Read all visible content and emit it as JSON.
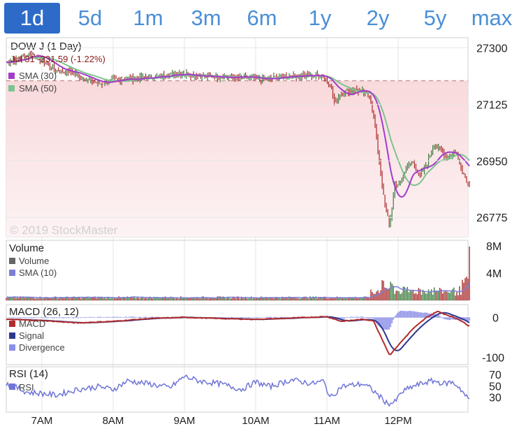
{
  "ranges": [
    {
      "label": "1d",
      "active": true
    },
    {
      "label": "5d",
      "active": false
    },
    {
      "label": "1m",
      "active": false
    },
    {
      "label": "3m",
      "active": false
    },
    {
      "label": "6m",
      "active": false
    },
    {
      "label": "1y",
      "active": false
    },
    {
      "label": "2y",
      "active": false
    },
    {
      "label": "5y",
      "active": false
    },
    {
      "label": "max",
      "active": false
    }
  ],
  "watermark": "© 2019 StockMaster",
  "chart_data": [
    {
      "type": "line",
      "title": "DOW J (1 Day)",
      "subtitle": "Jul 31 -331.59 (-1.22%)",
      "x_ticks": [
        "7AM",
        "8AM",
        "9AM",
        "10AM",
        "11AM",
        "12PM"
      ],
      "y_ticks": [
        27300,
        27125,
        26950,
        26775
      ],
      "ylim": [
        26715,
        27305
      ],
      "prev_close": 27198,
      "series": [
        {
          "name": "SMA (30)",
          "color": "#a23bc9"
        },
        {
          "name": "SMA (50)",
          "color": "#7cc48f"
        }
      ],
      "price_keypoints": [
        [
          6.5,
          27255
        ],
        [
          6.7,
          27268
        ],
        [
          6.85,
          27285
        ],
        [
          7.0,
          27260
        ],
        [
          7.2,
          27230
        ],
        [
          7.4,
          27225
        ],
        [
          7.6,
          27205
        ],
        [
          7.8,
          27188
        ],
        [
          8.0,
          27200
        ],
        [
          8.3,
          27205
        ],
        [
          8.6,
          27210
        ],
        [
          8.9,
          27222
        ],
        [
          9.2,
          27213
        ],
        [
          9.5,
          27210
        ],
        [
          9.8,
          27208
        ],
        [
          10.1,
          27200
        ],
        [
          10.4,
          27212
        ],
        [
          10.7,
          27215
        ],
        [
          10.95,
          27212
        ],
        [
          11.05,
          27185
        ],
        [
          11.1,
          27130
        ],
        [
          11.2,
          27160
        ],
        [
          11.35,
          27170
        ],
        [
          11.5,
          27165
        ],
        [
          11.6,
          27150
        ],
        [
          11.68,
          27050
        ],
        [
          11.75,
          26920
        ],
        [
          11.8,
          26830
        ],
        [
          11.88,
          26750
        ],
        [
          11.95,
          26870
        ],
        [
          12.05,
          26890
        ],
        [
          12.12,
          26930
        ],
        [
          12.2,
          26950
        ],
        [
          12.3,
          26900
        ],
        [
          12.4,
          26940
        ],
        [
          12.5,
          27000
        ],
        [
          12.6,
          26980
        ],
        [
          12.7,
          26960
        ],
        [
          12.8,
          26980
        ],
        [
          12.9,
          26920
        ],
        [
          12.98,
          26880
        ]
      ]
    },
    {
      "type": "bar",
      "title": "Volume",
      "y_ticks": [
        "8M",
        "4M"
      ],
      "ylim": [
        0,
        8000000
      ],
      "series": [
        {
          "name": "Volume",
          "color": "#666666"
        },
        {
          "name": "SMA (10)",
          "color": "#7b7fd8"
        }
      ]
    },
    {
      "type": "line",
      "title": "MACD (26, 12)",
      "y_ticks": [
        0,
        -100
      ],
      "ylim": [
        -115,
        25
      ],
      "series": [
        {
          "name": "MACD",
          "color": "#b22c2c"
        },
        {
          "name": "Signal",
          "color": "#2c3890"
        },
        {
          "name": "Divergence",
          "color": "#8a8fe6"
        }
      ],
      "macd_keypoints": [
        [
          6.5,
          -5
        ],
        [
          7.0,
          -8
        ],
        [
          7.5,
          -14
        ],
        [
          8.0,
          -10
        ],
        [
          8.5,
          -3
        ],
        [
          9.0,
          0
        ],
        [
          9.5,
          -3
        ],
        [
          10.0,
          -5
        ],
        [
          10.5,
          -2
        ],
        [
          11.0,
          2
        ],
        [
          11.2,
          -10
        ],
        [
          11.5,
          -5
        ],
        [
          11.65,
          -8
        ],
        [
          11.75,
          -45
        ],
        [
          11.88,
          -95
        ],
        [
          12.0,
          -70
        ],
        [
          12.2,
          -30
        ],
        [
          12.4,
          0
        ],
        [
          12.55,
          15
        ],
        [
          12.7,
          5
        ],
        [
          12.85,
          -5
        ],
        [
          12.98,
          -20
        ]
      ]
    },
    {
      "type": "line",
      "title": "RSI (14)",
      "y_ticks": [
        70,
        50,
        30
      ],
      "ylim": [
        5,
        85
      ],
      "series": [
        {
          "name": "RSI",
          "color": "#6f75d6"
        }
      ],
      "rsi_keypoints": [
        [
          6.5,
          55
        ],
        [
          6.8,
          40
        ],
        [
          7.0,
          38
        ],
        [
          7.2,
          35
        ],
        [
          7.5,
          45
        ],
        [
          7.8,
          50
        ],
        [
          8.0,
          45
        ],
        [
          8.2,
          60
        ],
        [
          8.5,
          55
        ],
        [
          8.8,
          48
        ],
        [
          9.0,
          68
        ],
        [
          9.2,
          60
        ],
        [
          9.5,
          55
        ],
        [
          9.8,
          45
        ],
        [
          10.0,
          58
        ],
        [
          10.2,
          50
        ],
        [
          10.5,
          62
        ],
        [
          10.8,
          55
        ],
        [
          10.95,
          60
        ],
        [
          11.05,
          30
        ],
        [
          11.2,
          50
        ],
        [
          11.5,
          55
        ],
        [
          11.6,
          48
        ],
        [
          11.72,
          35
        ],
        [
          11.85,
          20
        ],
        [
          11.95,
          22
        ],
        [
          12.05,
          40
        ],
        [
          12.2,
          50
        ],
        [
          12.4,
          58
        ],
        [
          12.5,
          60
        ],
        [
          12.65,
          55
        ],
        [
          12.75,
          58
        ],
        [
          12.85,
          50
        ],
        [
          12.98,
          28
        ]
      ]
    }
  ]
}
